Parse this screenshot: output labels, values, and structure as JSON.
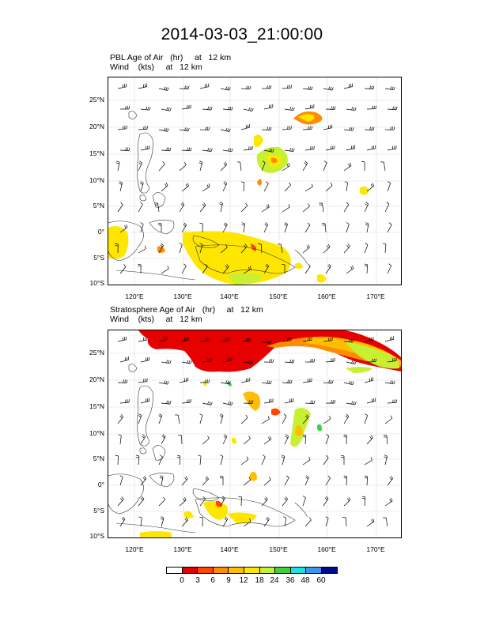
{
  "title": "2014-03-03_21:00:00",
  "panels": [
    {
      "field_line": "PBL Age of Air   (hr)     at   12 km",
      "wind_line": "Wind    (kts)     at   12 km"
    },
    {
      "field_line": "Stratosphere Age of Air   (hr)     at   12 km",
      "wind_line": "Wind    (kts)     at   12 km"
    }
  ],
  "map_extent": {
    "lon_min": 116,
    "lon_max": 173,
    "lat_min": -10,
    "lat_max": 29
  },
  "lat_ticks": [
    "25°N",
    "20°N",
    "15°N",
    "10°N",
    "5°N",
    "0°",
    "5°S",
    "10°S"
  ],
  "lon_ticks": [
    "120°E",
    "130°E",
    "140°E",
    "150°E",
    "160°E",
    "170°E"
  ],
  "colorbar": {
    "labels": [
      "0",
      "3",
      "6",
      "9",
      "12",
      "18",
      "24",
      "36",
      "48",
      "60"
    ],
    "colors": [
      "#ffffff",
      "#e60000",
      "#ff4500",
      "#ff8c00",
      "#ffbe00",
      "#ffe600",
      "#c8f032",
      "#3cd23c",
      "#14e6e6",
      "#3c96f0",
      "#000c8c"
    ]
  }
}
